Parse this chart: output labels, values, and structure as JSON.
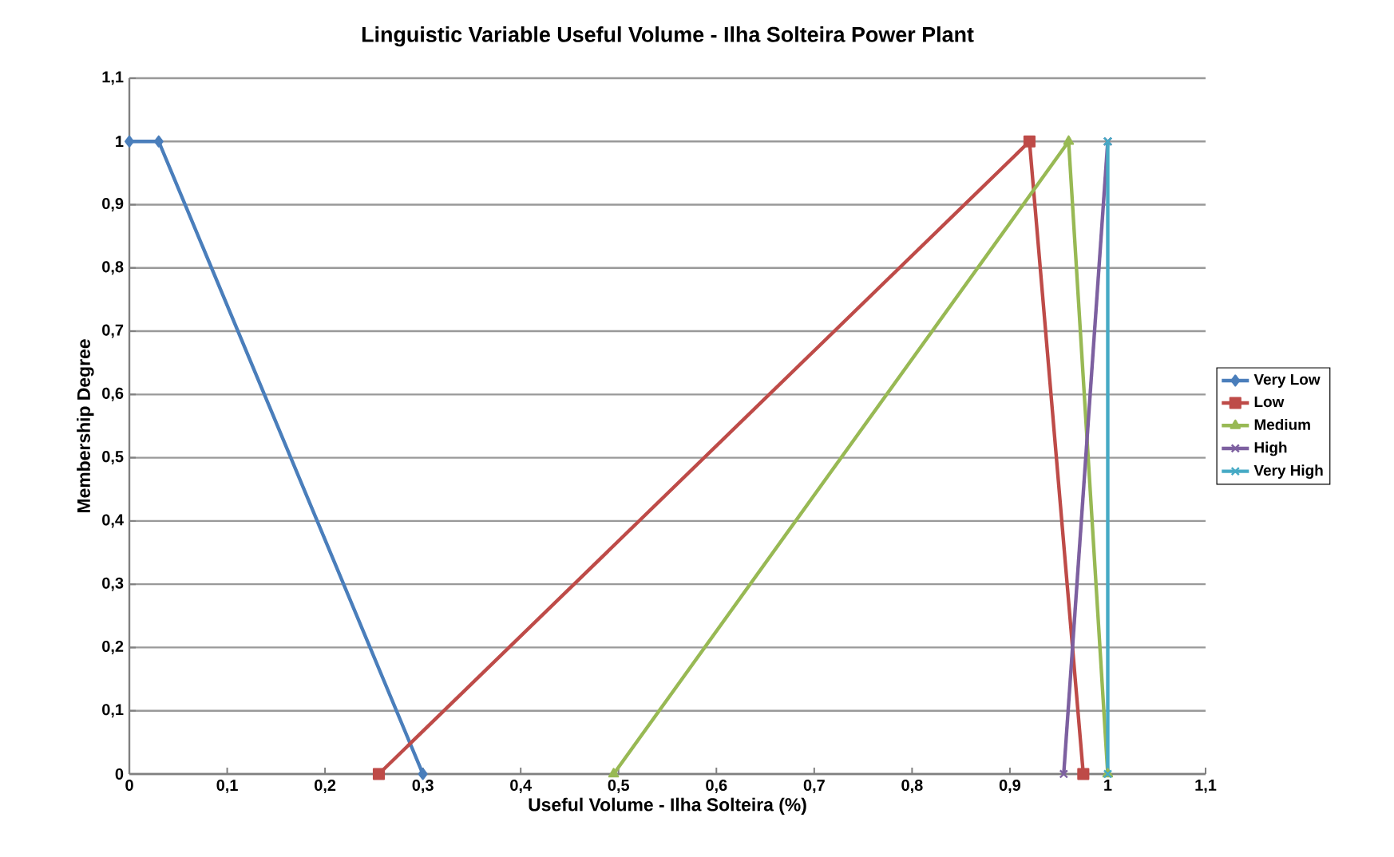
{
  "chart_data": {
    "type": "line",
    "title": "Linguistic Variable Useful Volume - Ilha Solteira Power Plant",
    "xlabel": "Useful Volume - Ilha Solteira (%)",
    "ylabel": "Membership Degree",
    "xlim": [
      0,
      1.1
    ],
    "ylim": [
      0,
      1.1
    ],
    "xticks": [
      0,
      {
        "value": 0.1,
        "label": "0,1"
      },
      {
        "value": 0.2,
        "label": "0,2"
      },
      {
        "value": 0.3,
        "label": "0,3"
      },
      {
        "value": 0.4,
        "label": "0,4"
      },
      {
        "value": 0.5,
        "label": "0,5"
      },
      {
        "value": 0.6,
        "label": "0,6"
      },
      {
        "value": 0.7,
        "label": "0,7"
      },
      {
        "value": 0.8,
        "label": "0,8"
      },
      {
        "value": 0.9,
        "label": "0,9"
      },
      1,
      {
        "value": 1.1,
        "label": "1,1"
      }
    ],
    "yticks": [
      0,
      {
        "value": 0.1,
        "label": "0,1"
      },
      {
        "value": 0.2,
        "label": "0,2"
      },
      {
        "value": 0.3,
        "label": "0,3"
      },
      {
        "value": 0.4,
        "label": "0,4"
      },
      {
        "value": 0.5,
        "label": "0,5"
      },
      {
        "value": 0.6,
        "label": "0,6"
      },
      {
        "value": 0.7,
        "label": "0,7"
      },
      {
        "value": 0.8,
        "label": "0,8"
      },
      {
        "value": 0.9,
        "label": "0,9"
      },
      1,
      {
        "value": 1.1,
        "label": "1,1"
      }
    ],
    "grid": "y",
    "legend": "right",
    "line_style": "solid",
    "series": [
      {
        "name": "Very Low",
        "color": "#4a7ebb",
        "marker": "diamond",
        "x": [
          0,
          0.03,
          0.3
        ],
        "values": [
          1,
          1,
          0
        ]
      },
      {
        "name": "Low",
        "color": "#be4b48",
        "marker": "square",
        "x": [
          0.255,
          0.92,
          0.975
        ],
        "values": [
          0,
          1,
          0
        ]
      },
      {
        "name": "Medium",
        "color": "#98b954",
        "marker": "triangle",
        "x": [
          0.495,
          0.96,
          1
        ],
        "values": [
          0,
          1,
          0
        ]
      },
      {
        "name": "High",
        "color": "#7d60a0",
        "marker": "cross",
        "x": [
          0.955,
          1,
          1
        ],
        "values": [
          0,
          1,
          1
        ]
      },
      {
        "name": "Very High",
        "color": "#46aac5",
        "marker": "cross",
        "x": [
          1,
          1,
          1
        ],
        "values": [
          0,
          1,
          1
        ]
      }
    ]
  }
}
